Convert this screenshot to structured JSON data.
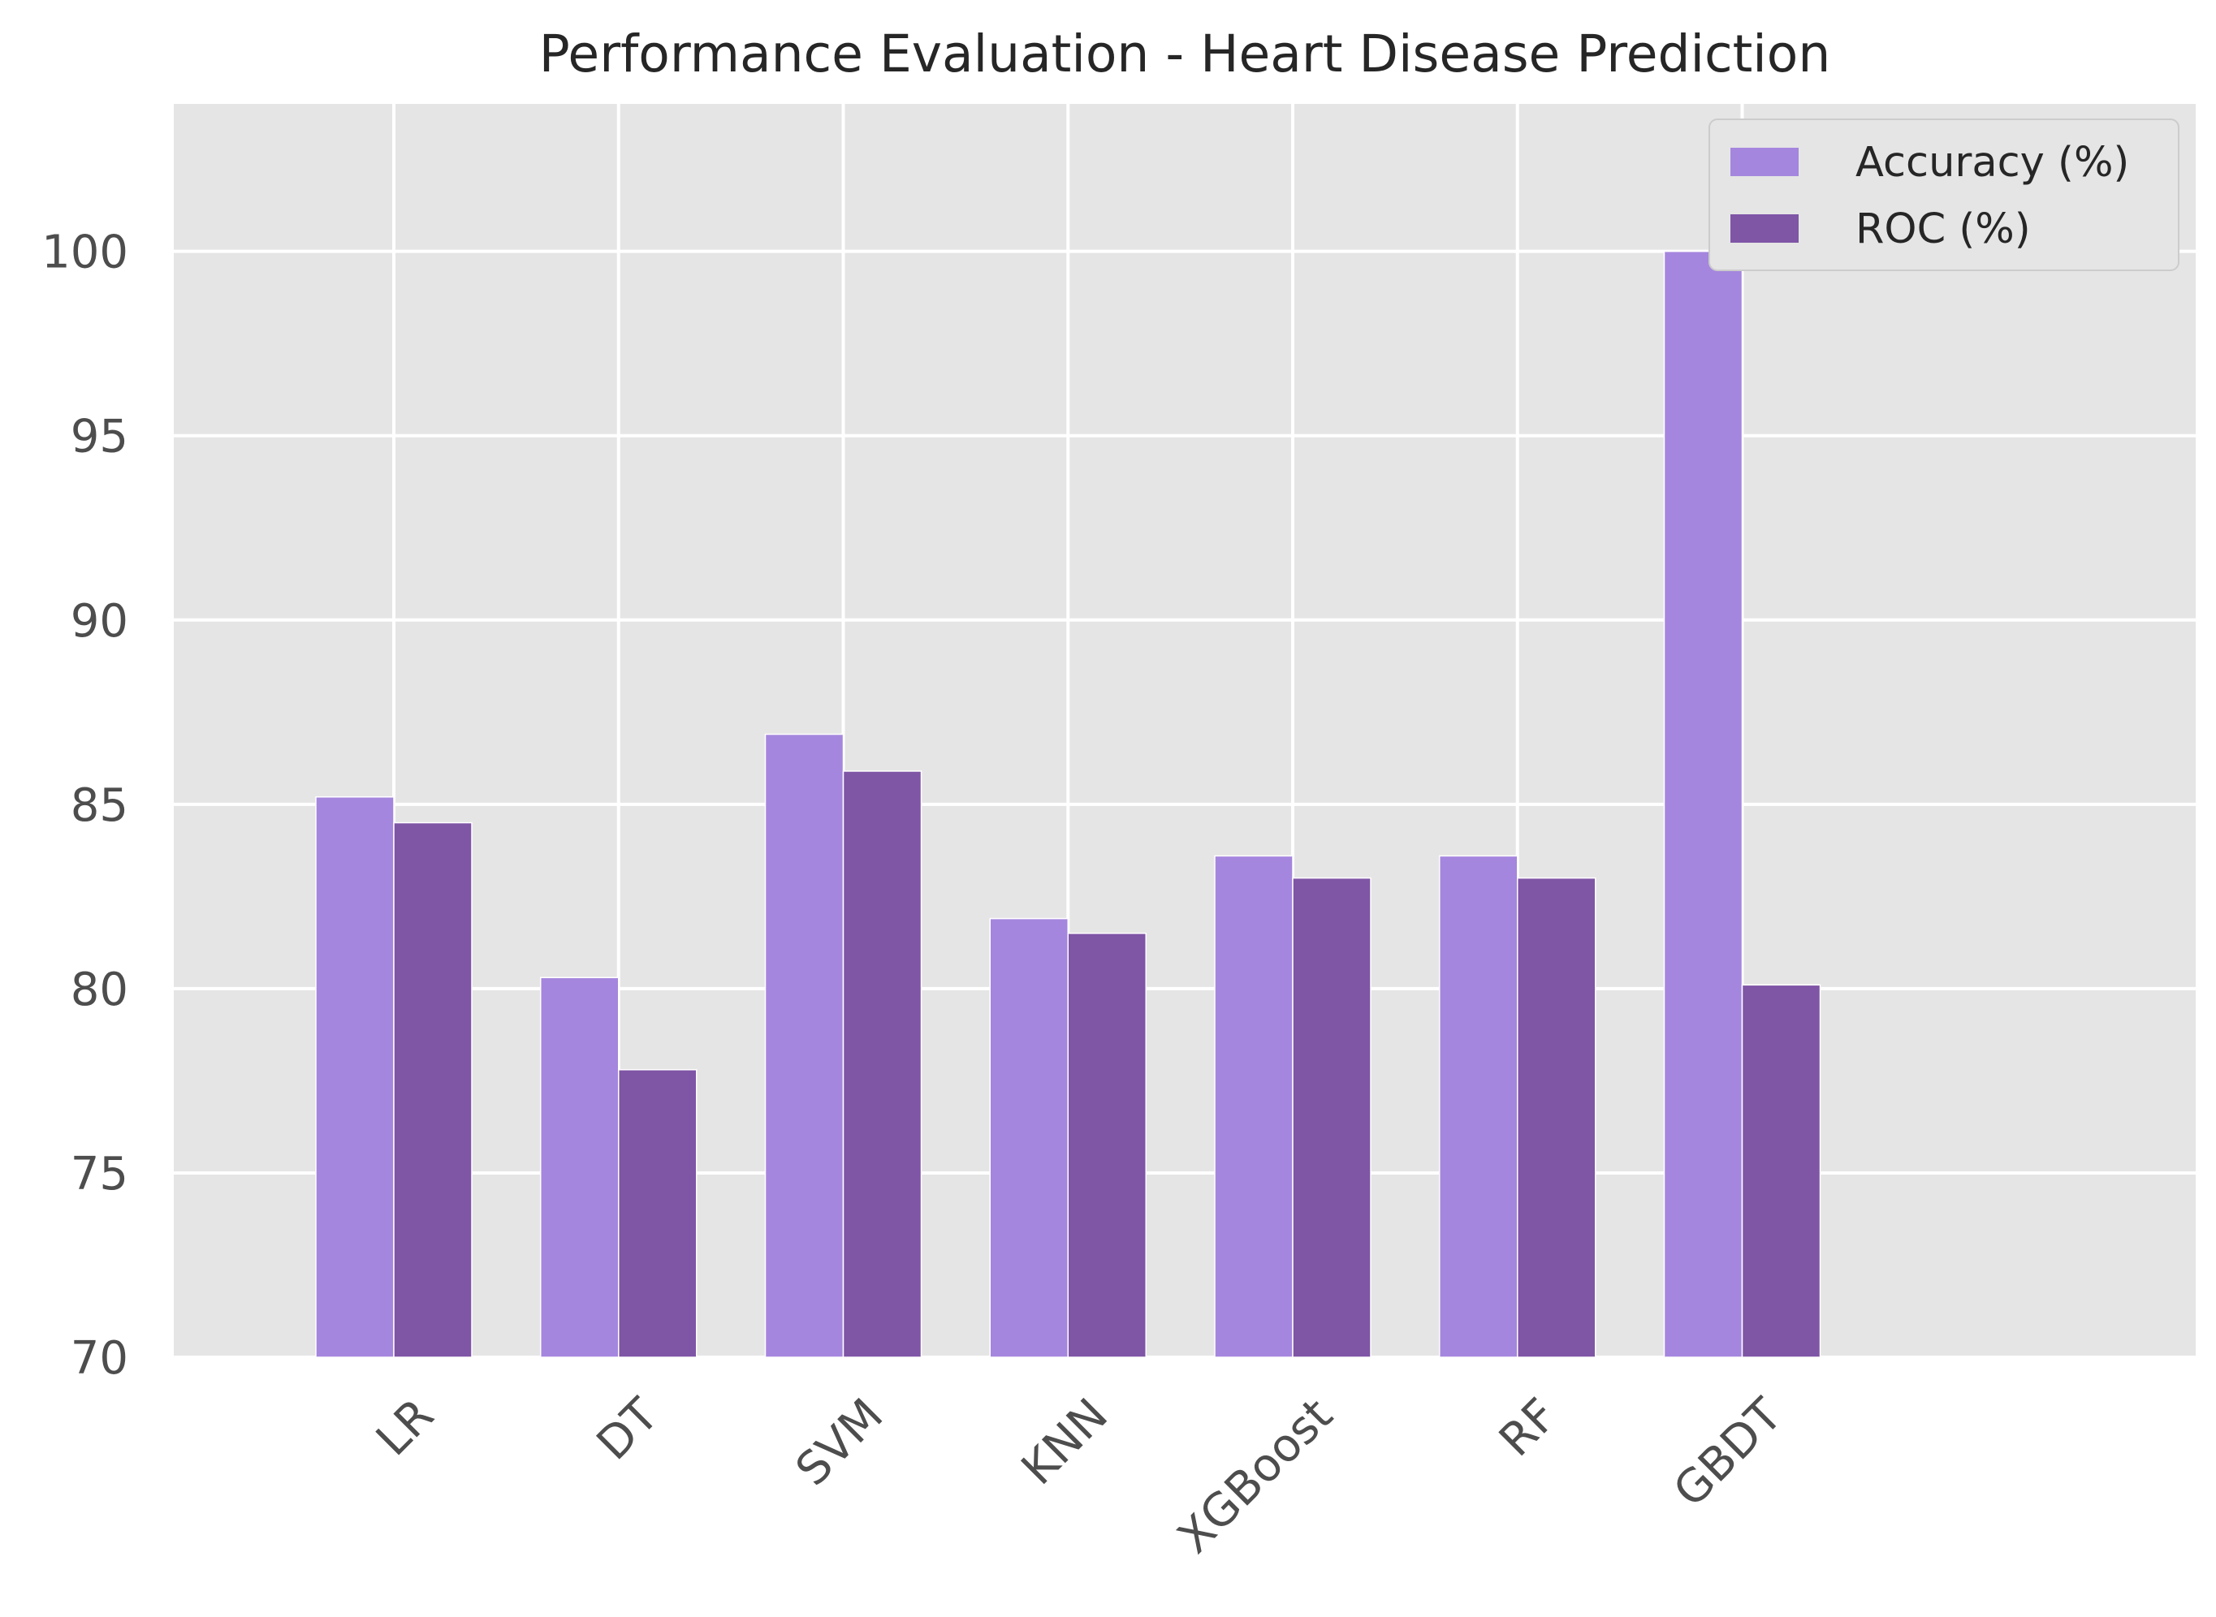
{
  "chart_data": {
    "type": "bar",
    "title": "Performance Evaluation - Heart Disease Prediction",
    "xlabel": "",
    "ylabel": "",
    "categories": [
      "LR",
      "DT",
      "SVM",
      "KNN",
      "XGBoost",
      "RF",
      "GBDT"
    ],
    "series": [
      {
        "name": "Accuracy (%)",
        "color": "#a586de",
        "values": [
          85.2,
          80.3,
          86.9,
          81.9,
          83.6,
          83.6,
          100.0
        ]
      },
      {
        "name": "ROC (%)",
        "color": "#7f55a6",
        "values": [
          84.5,
          77.8,
          85.9,
          81.5,
          83.0,
          83.0,
          80.1
        ]
      }
    ],
    "ylim": [
      70,
      104
    ],
    "yticks": [
      70,
      75,
      80,
      85,
      90,
      95,
      100
    ],
    "grid": true,
    "legend_position": "top-right",
    "background": "#e5e5e5",
    "grid_color": "#ffffff"
  }
}
